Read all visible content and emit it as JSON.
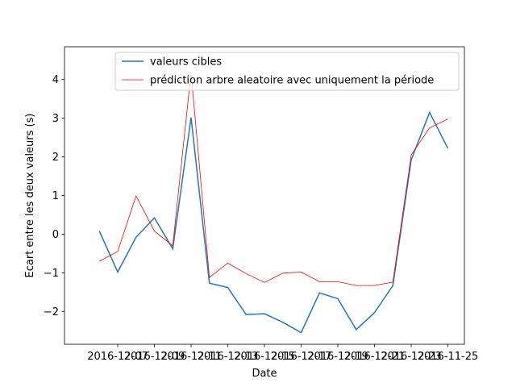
{
  "chart_data": {
    "type": "line",
    "title": "",
    "xlabel": "Date",
    "ylabel": "Ecart entre les deux valeurs (s)",
    "x_tick_labels": [
      "2016-12-07",
      "2016-12-09",
      "2016-12-11",
      "2016-12-13",
      "2016-12-15",
      "2016-12-17",
      "2016-12-19",
      "2016-12-21",
      "2016-12-23",
      "2016-11-25"
    ],
    "x_tick_positions": [
      2,
      4,
      6,
      8,
      10,
      12,
      14,
      16,
      18,
      20
    ],
    "xlim": [
      -0.9,
      20.9
    ],
    "ylim": [
      -2.85,
      4.85
    ],
    "y_ticks": [
      -2,
      -1,
      0,
      1,
      2,
      3,
      4
    ],
    "x": [
      1,
      2,
      3,
      4,
      5,
      6,
      7,
      8,
      9,
      10,
      11,
      12,
      13,
      14,
      15,
      16,
      17,
      18,
      19,
      20
    ],
    "series": [
      {
        "name": "valeurs cibles",
        "color": "#1f77b4",
        "values": [
          0.08,
          -0.98,
          -0.08,
          0.42,
          -0.38,
          3.02,
          -1.27,
          -1.38,
          -2.08,
          -2.06,
          -2.28,
          -2.55,
          -1.52,
          -1.67,
          -2.47,
          -2.03,
          -1.33,
          1.92,
          3.15,
          2.22
        ]
      },
      {
        "name": "prédiction arbre aleatoire avec uniquement la période",
        "color": "#ff0000",
        "values": [
          -0.7,
          -0.45,
          0.99,
          0.08,
          -0.3,
          4.18,
          -1.12,
          -0.75,
          -1.02,
          -1.25,
          -1.01,
          -0.98,
          -1.23,
          -1.23,
          -1.33,
          -1.33,
          -1.24,
          2.05,
          2.75,
          2.98
        ]
      }
    ],
    "grid": false,
    "legend_placement": "upper center"
  }
}
